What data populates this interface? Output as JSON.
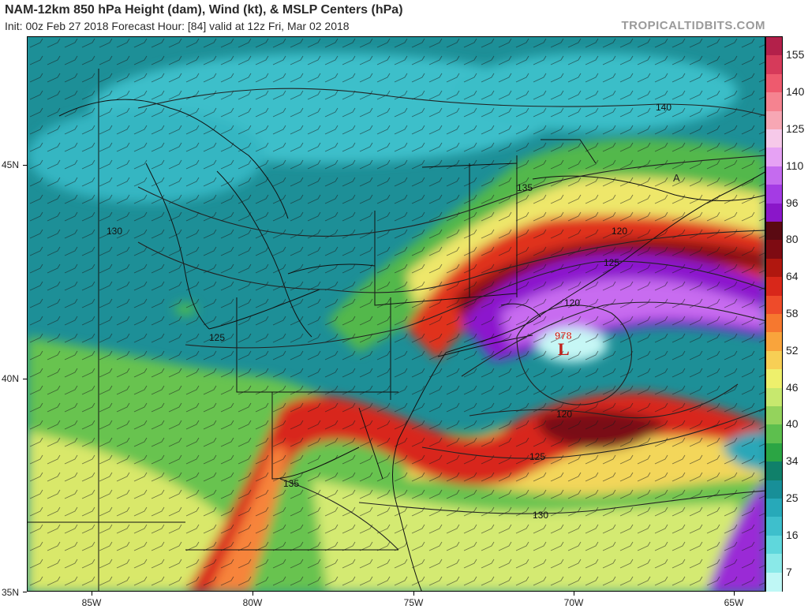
{
  "header": {
    "title": "NAM-12km 850 hPa Height (dam), Wind (kt), & MSLP Centers (hPa)",
    "subtitle": "Init: 00z Feb 27 2018   Forecast Hour: [84]   valid at 12z Fri, Mar 02 2018",
    "brand": "TROPICALTIDBITS.COM"
  },
  "map": {
    "lat_labels": [
      "45N",
      "40N",
      "35N"
    ],
    "lon_labels": [
      "85W",
      "80W",
      "75W",
      "70W",
      "65W"
    ],
    "contour_labels": [
      "140",
      "135",
      "130",
      "125",
      "120",
      "120",
      "125",
      "120",
      "125",
      "130",
      "135"
    ],
    "low_center": {
      "symbol": "L",
      "pressure": "978"
    },
    "high_marker": "A"
  },
  "colorbar": {
    "labels": [
      "155",
      "140",
      "125",
      "110",
      "96",
      "80",
      "64",
      "58",
      "52",
      "46",
      "40",
      "34",
      "25",
      "16",
      "7"
    ],
    "colors": [
      "#b3204a",
      "#d63a5a",
      "#ee5a6e",
      "#f58390",
      "#f7a7b4",
      "#f6c9e9",
      "#e6a2f4",
      "#c56bef",
      "#a43be4",
      "#8a16c9",
      "#5a0a12",
      "#7e0b12",
      "#b0170f",
      "#d8271a",
      "#ee4b2a",
      "#f6782f",
      "#f9a43c",
      "#f7cf55",
      "#eef06c",
      "#c7e86e",
      "#94d35c",
      "#5dbf4e",
      "#2ba544",
      "#10806a",
      "#188f98",
      "#27a9b9",
      "#3ebfcc",
      "#5fd7dc",
      "#8ae9e8",
      "#bff7f5"
    ]
  }
}
